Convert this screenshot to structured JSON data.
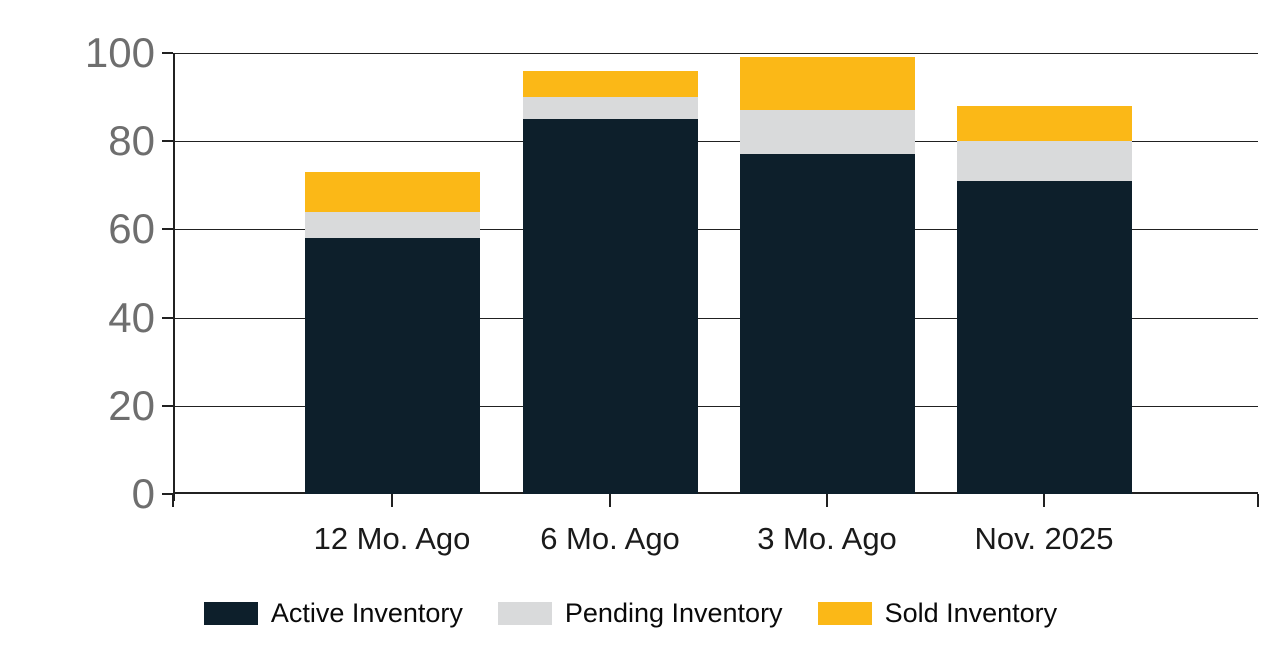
{
  "chart_data": {
    "type": "bar",
    "stacked": true,
    "title": "",
    "xlabel": "",
    "ylabel": "",
    "categories": [
      "12 Mo. Ago",
      "6 Mo. Ago",
      "3 Mo. Ago",
      "Nov. 2025"
    ],
    "series": [
      {
        "name": "Active Inventory",
        "color": "#0d1f2b",
        "values": [
          58,
          85,
          77,
          71
        ]
      },
      {
        "name": "Pending Inventory",
        "color": "#d9dadb",
        "values": [
          6,
          5,
          10,
          9
        ]
      },
      {
        "name": "Sold Inventory",
        "color": "#fbb817",
        "values": [
          9,
          6,
          12,
          8
        ]
      }
    ],
    "stack_totals": [
      73,
      96,
      99,
      88
    ],
    "yticks": [
      0,
      20,
      40,
      60,
      80,
      100
    ],
    "ylim": [
      0,
      100
    ],
    "grid": true,
    "legend_position": "bottom",
    "colors": {
      "grid_line": "#212121",
      "axis_line": "#212121",
      "y_tick_label": "#6e6e6e",
      "x_tick_label": "#1a1a1a",
      "legend_text": "#0a0a0a",
      "background": "#ffffff"
    }
  }
}
